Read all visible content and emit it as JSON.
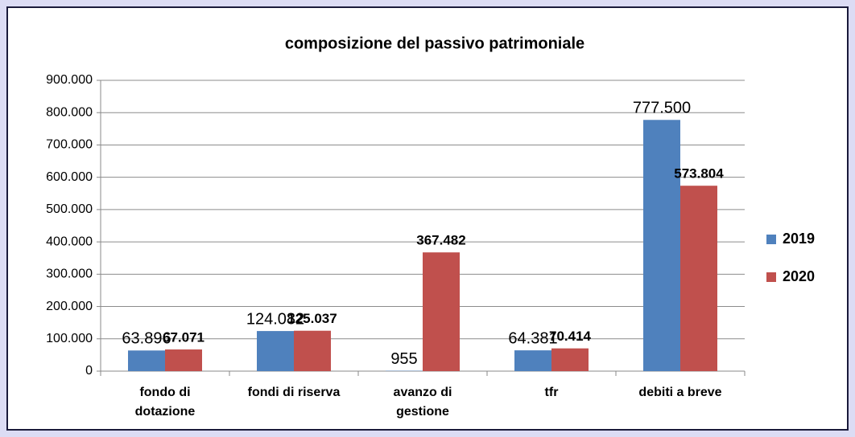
{
  "chart_data": {
    "type": "bar",
    "title": "composizione del passivo patrimoniale",
    "categories": [
      "fondo di dotazione",
      "fondi di riserva",
      "avanzo di gestione",
      "tfr",
      "debiti a breve"
    ],
    "series": [
      {
        "name": "2019",
        "color": "#4f81bd",
        "values": [
          63896,
          124082,
          955,
          64381,
          777500
        ],
        "value_labels": [
          "63.896",
          "124.082",
          "955",
          "64.381",
          "777.500"
        ]
      },
      {
        "name": "2020",
        "color": "#c0504d",
        "values": [
          67071,
          125037,
          367482,
          70414,
          573804
        ],
        "value_labels": [
          "67.071",
          "125.037",
          "367.482",
          "70.414",
          "573.804"
        ]
      }
    ],
    "ylim": [
      0,
      900000
    ],
    "yticks": [
      0,
      {
        "value": 100000,
        "label": "100.000"
      },
      {
        "value": 200000,
        "label": "200.000"
      },
      {
        "value": 300000,
        "label": "300.000"
      },
      {
        "value": 400000,
        "label": "400.000"
      },
      {
        "value": 500000,
        "label": "500.000"
      },
      {
        "value": 600000,
        "label": "600.000"
      },
      {
        "value": 700000,
        "label": "700.000"
      },
      {
        "value": 800000,
        "label": "800.000"
      },
      {
        "value": 900000,
        "label": "900.000"
      }
    ],
    "grid": true,
    "legend": "right"
  }
}
